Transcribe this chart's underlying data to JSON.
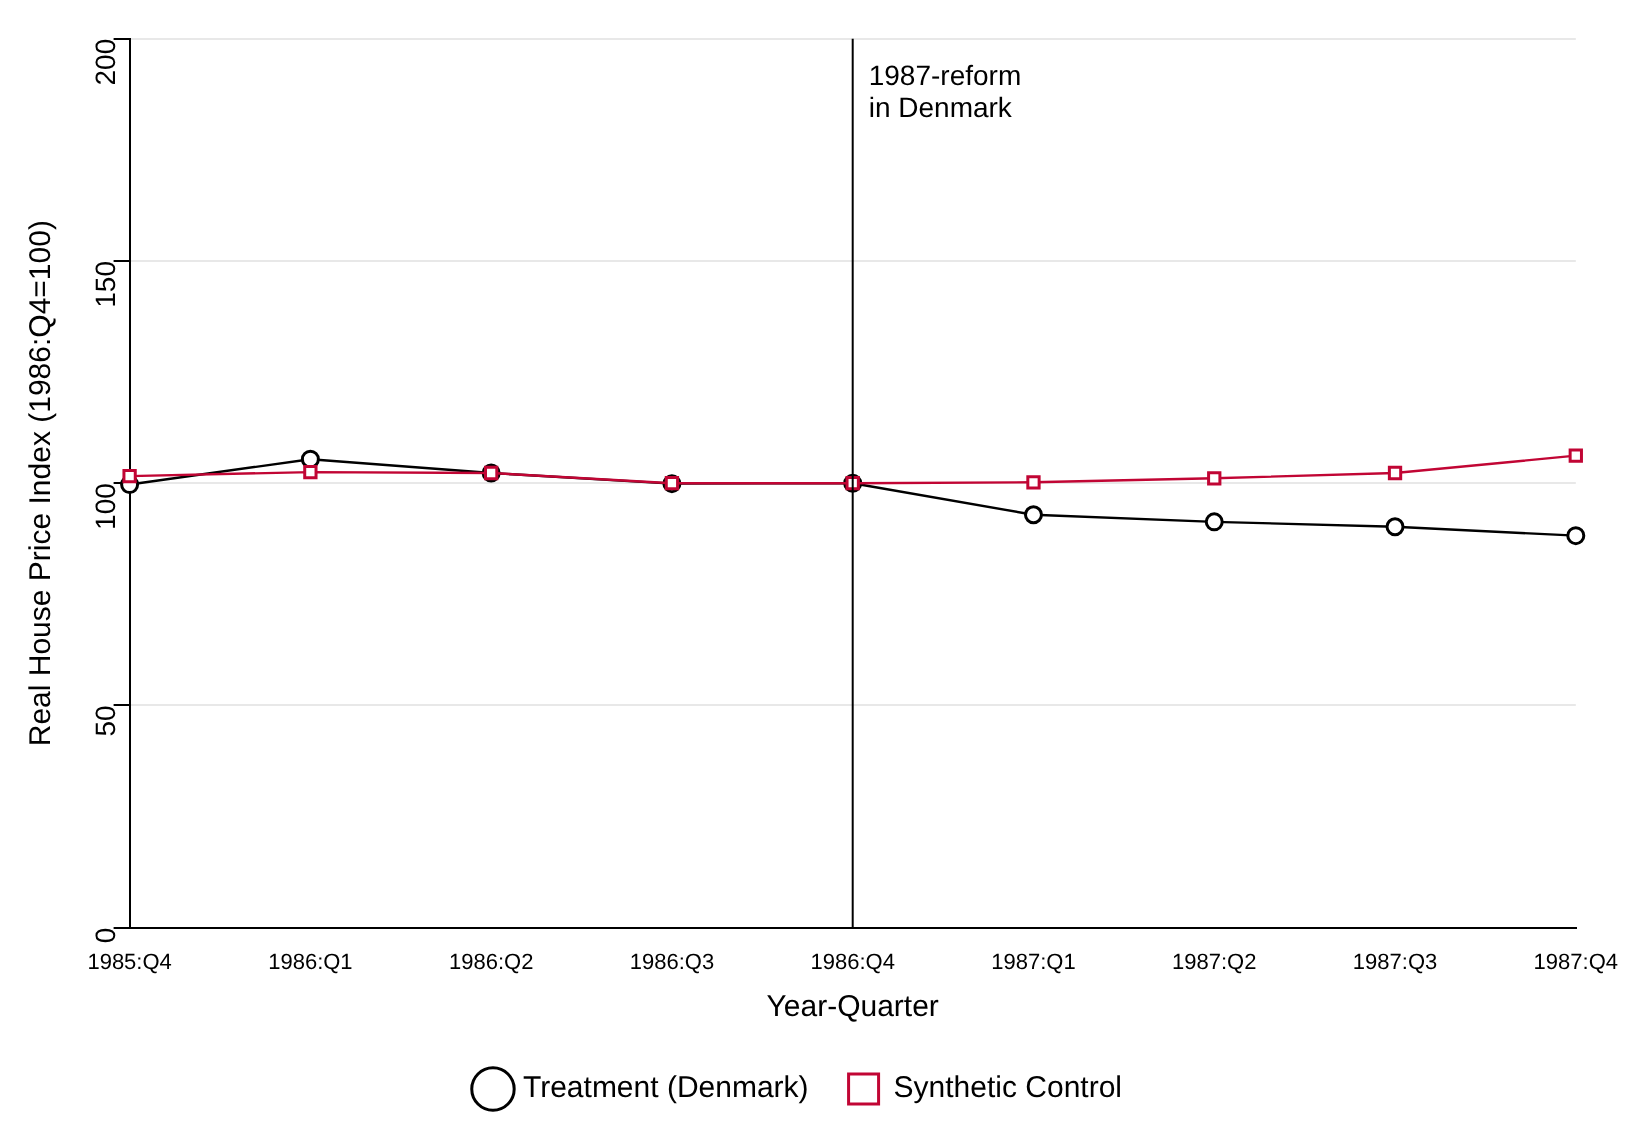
{
  "chart_data": {
    "type": "line",
    "xlabel": "Year-Quarter",
    "ylabel": "Real House Price Index (1986:Q4=100)",
    "categories": [
      "1985:Q4",
      "1986:Q1",
      "1986:Q2",
      "1986:Q3",
      "1986:Q4",
      "1987:Q1",
      "1987:Q2",
      "1987:Q3",
      "1987:Q4"
    ],
    "series": [
      {
        "name": "Treatment (Denmark)",
        "color": "#000000",
        "marker": "circle",
        "values": [
          99.7,
          105.4,
          102.3,
          99.9,
          100,
          92.9,
          91.3,
          90.2,
          88.2
        ]
      },
      {
        "name": "Synthetic Control",
        "color": "#c10534",
        "marker": "square",
        "values": [
          101.6,
          102.5,
          102.3,
          100,
          100,
          100.2,
          101.1,
          102.3,
          106.2
        ]
      }
    ],
    "ylim": [
      0,
      200
    ],
    "yticks": [
      0,
      50,
      100,
      150,
      200
    ],
    "grid": "y",
    "legend": "bottom",
    "ref_lines": [
      {
        "axis": "x",
        "value": "1986:Q4",
        "label": "1987-reform\nin Denmark",
        "color": "#000000"
      }
    ]
  }
}
